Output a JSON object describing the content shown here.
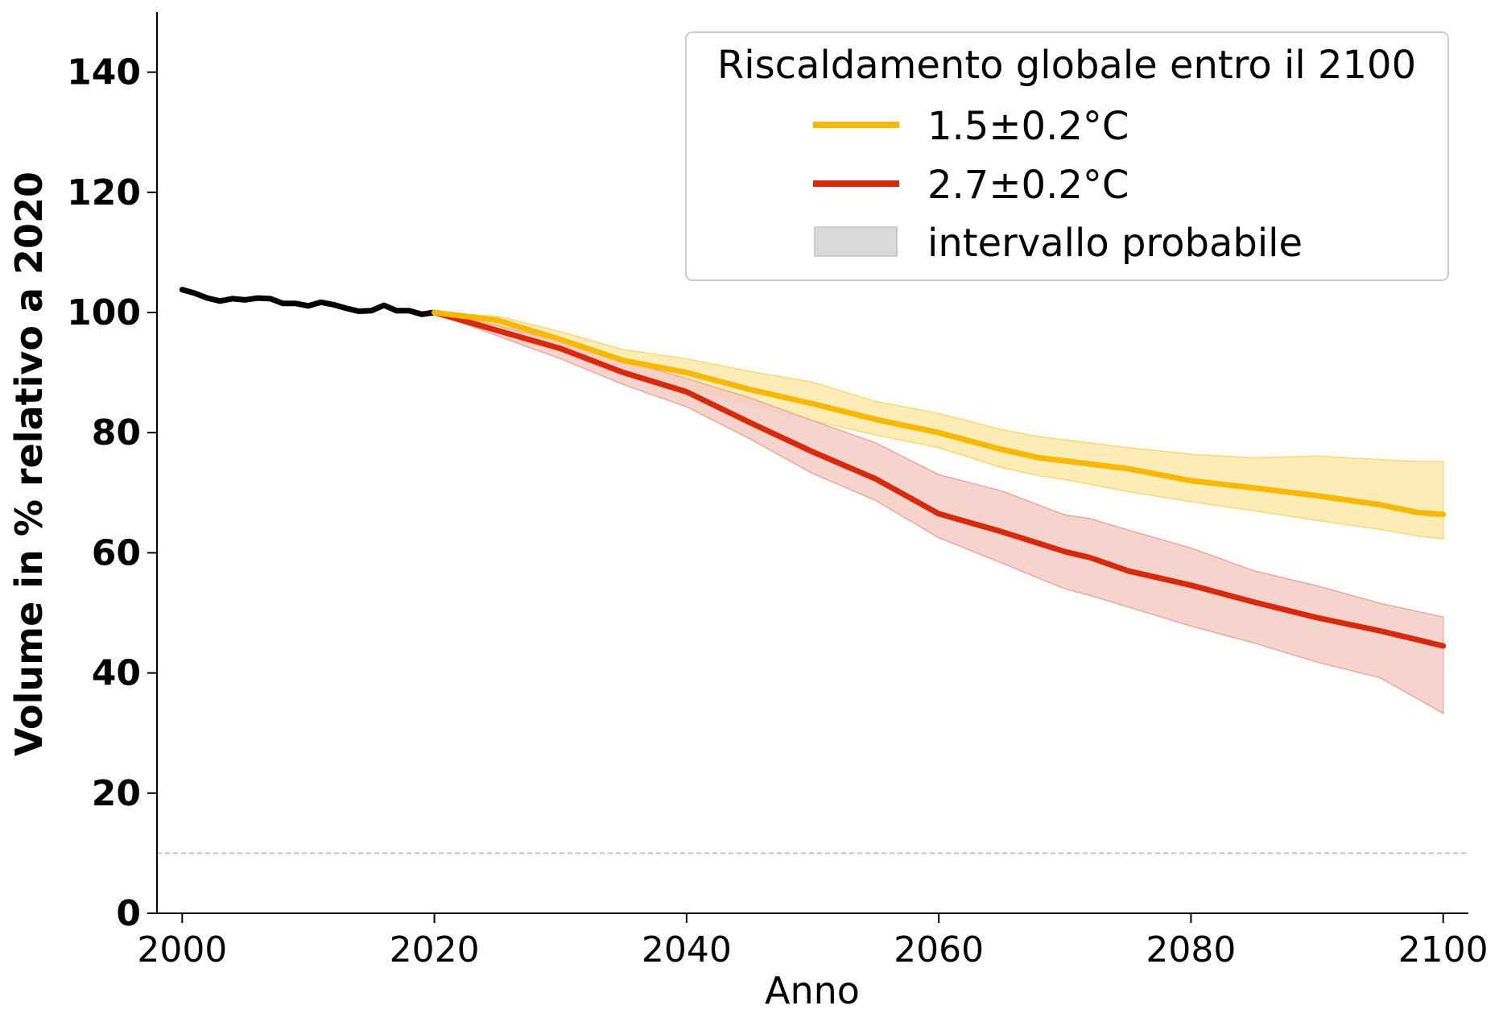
{
  "chart_data": {
    "type": "line",
    "title": "",
    "xlabel": "Anno",
    "ylabel": "Volume in % relativo a 2020",
    "xlim": [
      1998,
      2102
    ],
    "ylim": [
      0,
      150
    ],
    "x_ticks": [
      2000,
      2020,
      2040,
      2060,
      2080,
      2100
    ],
    "y_ticks": [
      0,
      20,
      40,
      60,
      80,
      100,
      120,
      140
    ],
    "grid": false,
    "reference_line": {
      "y": 10,
      "style": "dashed",
      "color": "#bbbbbb"
    },
    "legend": {
      "title": "Riscaldamento globale entro il 2100",
      "placement": "top-right",
      "entries": [
        {
          "label": "1.5±0.2°C",
          "kind": "line",
          "color": "#f7b800"
        },
        {
          "label": "2.7±0.2°C",
          "kind": "line",
          "color": "#d62a0a"
        },
        {
          "label": "intervallo probabile",
          "kind": "patch",
          "color": "#d9d9d9"
        }
      ]
    },
    "series": [
      {
        "id": "historical",
        "color": "#000000",
        "x": [
          2000,
          2001,
          2002,
          2003,
          2004,
          2005,
          2006,
          2007,
          2008,
          2009,
          2010,
          2011,
          2012,
          2013,
          2014,
          2015,
          2016,
          2017,
          2018,
          2019,
          2020
        ],
        "y": [
          103.8,
          103.2,
          102.4,
          101.9,
          102.3,
          102.1,
          102.4,
          102.3,
          101.5,
          101.5,
          101.1,
          101.7,
          101.3,
          100.7,
          100.2,
          100.3,
          101.2,
          100.3,
          100.3,
          99.7,
          100.0
        ]
      },
      {
        "id": "scenario-1.5",
        "name": "1.5±0.2°C",
        "color": "#f7b800",
        "band_color": "#fde9a8",
        "band_stroke": "#fbd77a",
        "x": [
          2020,
          2025,
          2030,
          2035,
          2040,
          2045,
          2050,
          2055,
          2060,
          2065,
          2068,
          2070,
          2075,
          2080,
          2085,
          2090,
          2095,
          2098,
          2100
        ],
        "y": [
          100,
          98.7,
          95.5,
          92,
          90,
          87.2,
          84.8,
          82.2,
          80,
          77.2,
          75.8,
          75.3,
          74,
          72,
          70.8,
          69.5,
          68,
          66.7,
          66.4
        ],
        "lower": [
          100,
          98.0,
          94.3,
          90.3,
          87.5,
          84.7,
          82.0,
          79.6,
          77.5,
          74.2,
          72.8,
          72.2,
          70.2,
          68.5,
          67.0,
          65.4,
          63.9,
          62.8,
          62.3
        ],
        "upper": [
          100,
          99.4,
          96.8,
          93.8,
          92.3,
          90.2,
          88.4,
          85.2,
          83.2,
          80.5,
          79.3,
          78.8,
          77.5,
          76.4,
          75.8,
          76.1,
          75.5,
          75.2,
          75.2
        ]
      },
      {
        "id": "scenario-2.7",
        "name": "2.7±0.2°C",
        "color": "#d62a0a",
        "band_color": "#f4cbc4",
        "band_stroke": "#eca89c",
        "x": [
          2020,
          2025,
          2030,
          2035,
          2040,
          2045,
          2050,
          2055,
          2060,
          2065,
          2070,
          2072,
          2075,
          2080,
          2085,
          2090,
          2095,
          2100
        ],
        "y": [
          100,
          97,
          94,
          90,
          86.8,
          81.7,
          76.8,
          72.3,
          66.5,
          63.5,
          60.2,
          59.2,
          57,
          54.6,
          51.8,
          49.2,
          47,
          44.5
        ],
        "lower": [
          100,
          96.1,
          92.3,
          88.0,
          84.3,
          79.0,
          73.2,
          68.7,
          62.5,
          58.3,
          54.0,
          52.9,
          51.0,
          47.8,
          45.0,
          41.8,
          39.2,
          33.3
        ],
        "upper": [
          100,
          97.8,
          95.2,
          92.0,
          89.0,
          85.8,
          82.0,
          78.3,
          73.0,
          70.3,
          66.3,
          65.7,
          63.8,
          60.8,
          57.0,
          54.5,
          51.6,
          49.3
        ]
      }
    ]
  }
}
